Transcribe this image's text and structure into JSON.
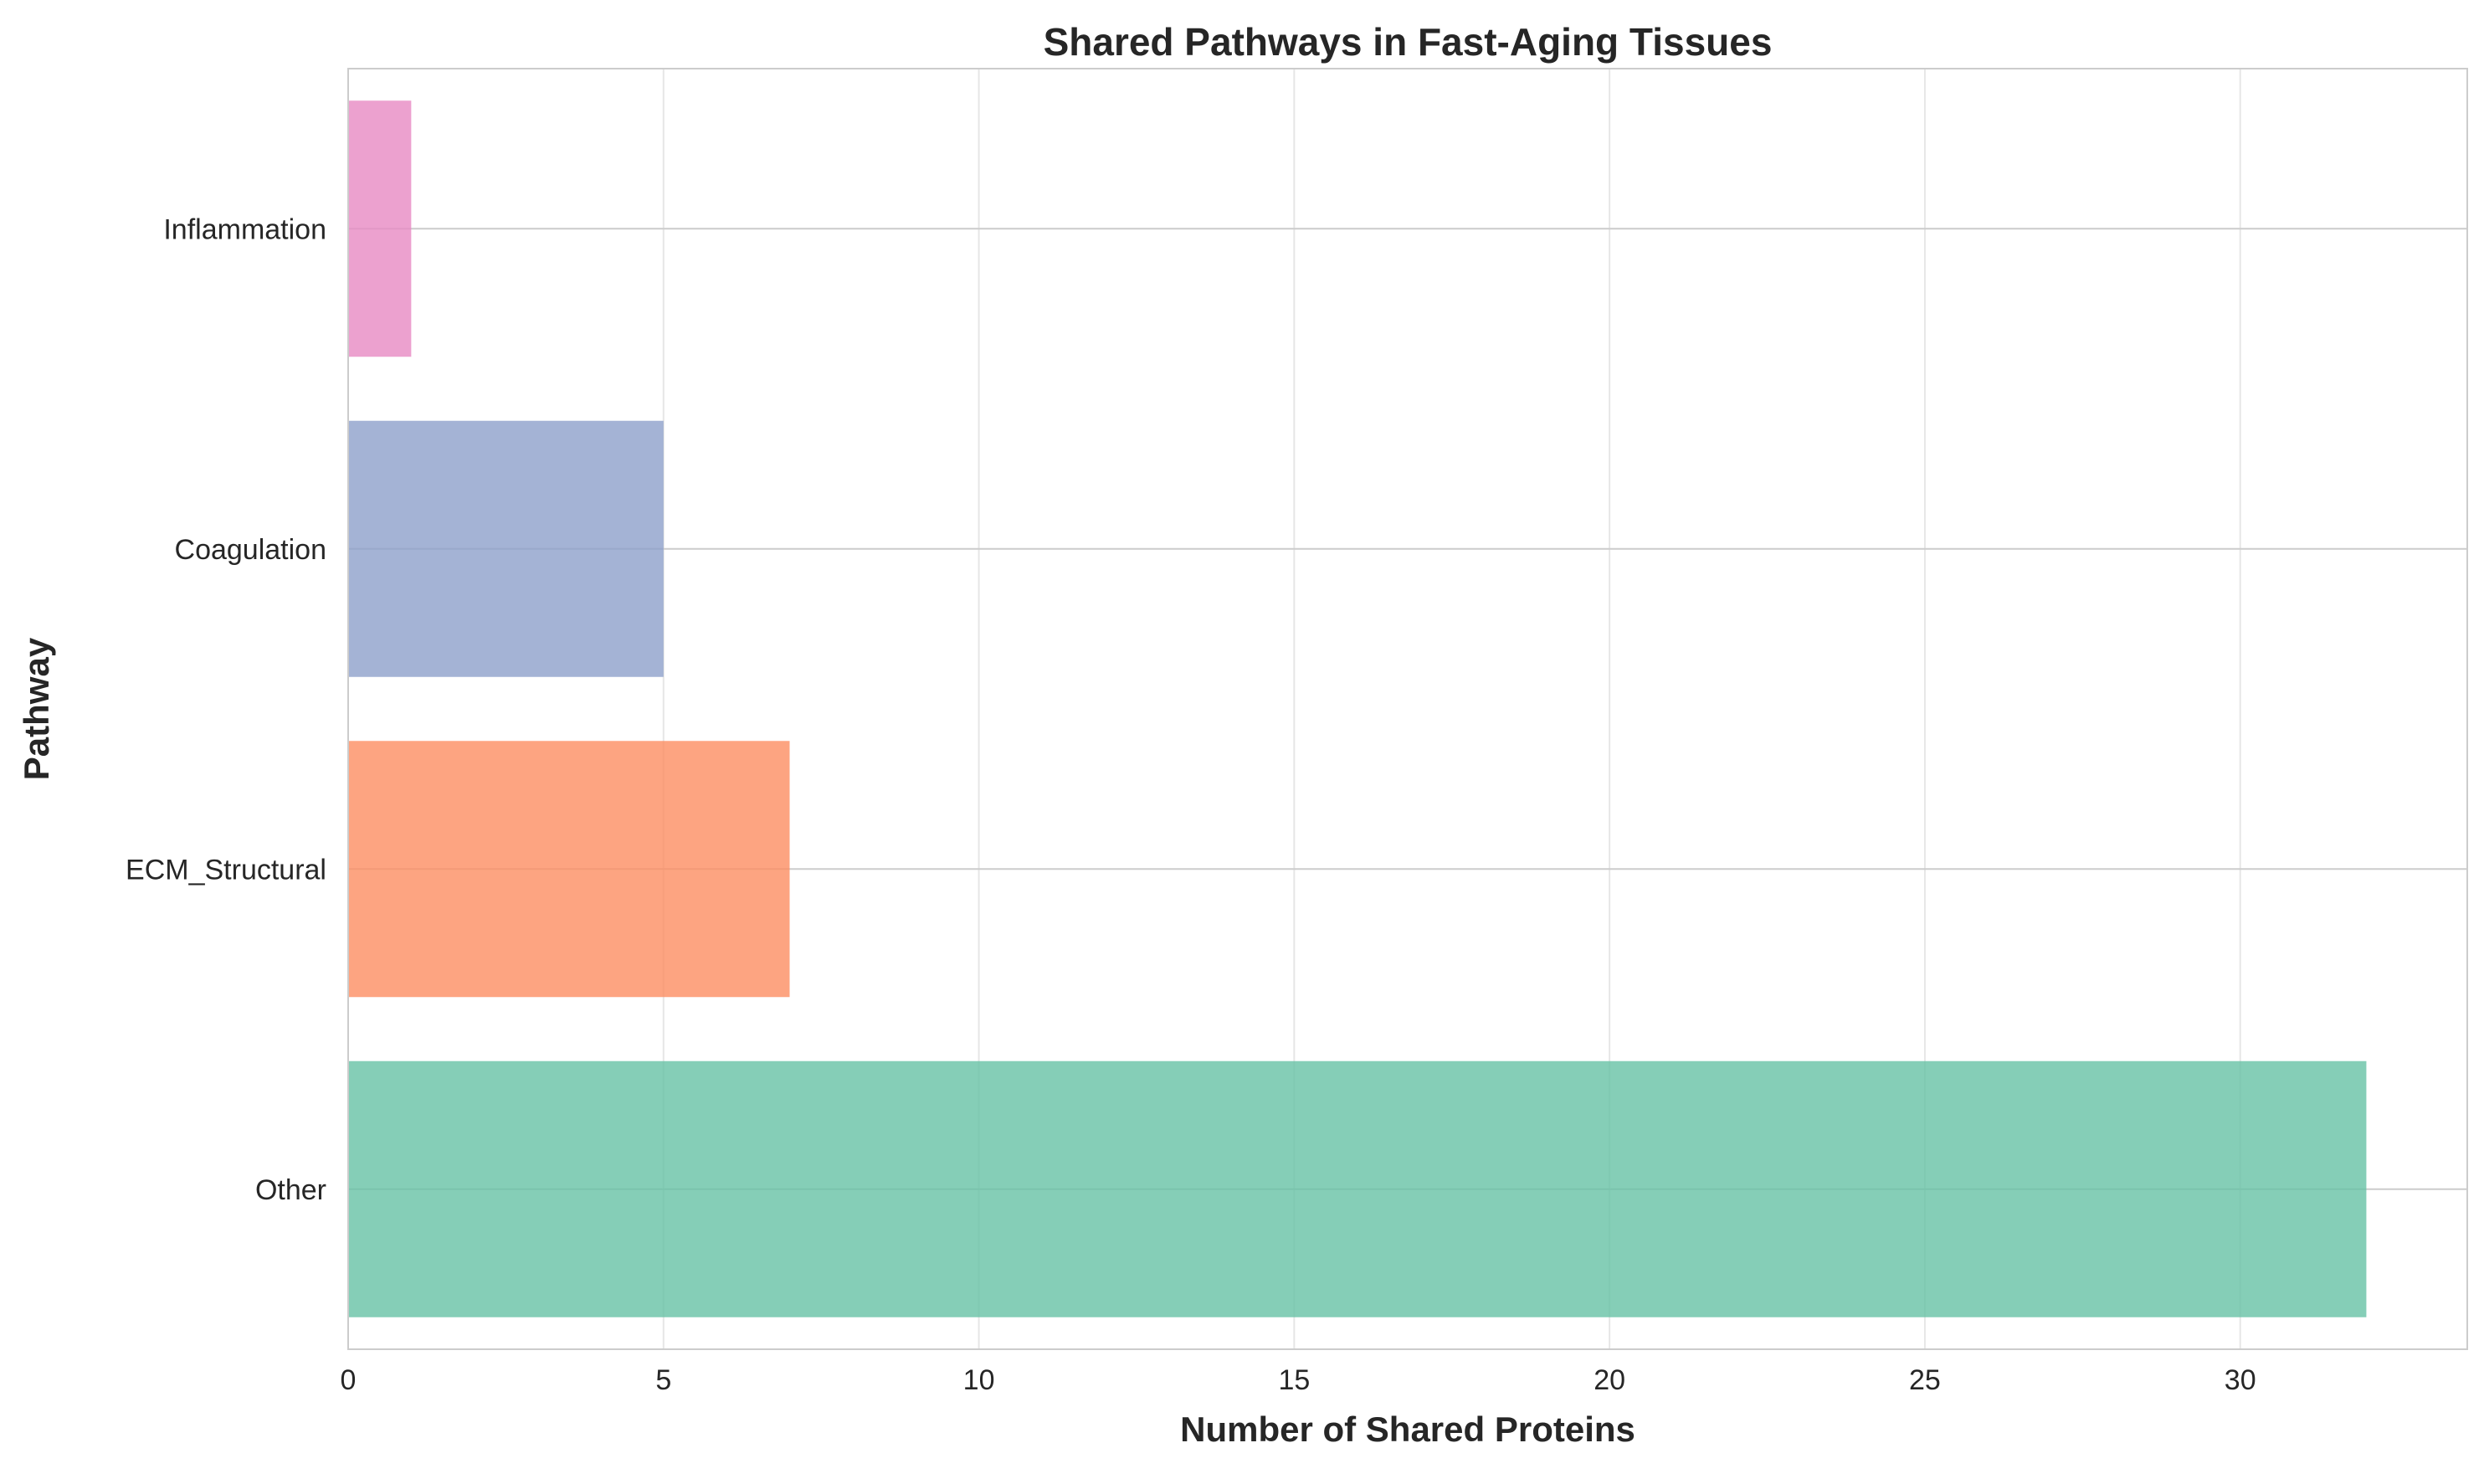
{
  "chart_data": {
    "type": "bar",
    "orientation": "horizontal",
    "title": "Shared Pathways in Fast-Aging Tissues",
    "xlabel": "Number of Shared Proteins",
    "ylabel": "Pathway",
    "categories": [
      "Other",
      "ECM_Structural",
      "Coagulation",
      "Inflammation"
    ],
    "values": [
      32,
      7,
      5,
      1
    ],
    "colors": [
      "#66c2a5",
      "#fc8d62",
      "#8da0cb",
      "#e78ac3"
    ],
    "bar_opacity": 0.8,
    "xlim": [
      0,
      33.6
    ],
    "xticks": [
      0,
      5,
      10,
      15,
      20,
      25,
      30
    ],
    "grid": true,
    "legend": "none"
  }
}
